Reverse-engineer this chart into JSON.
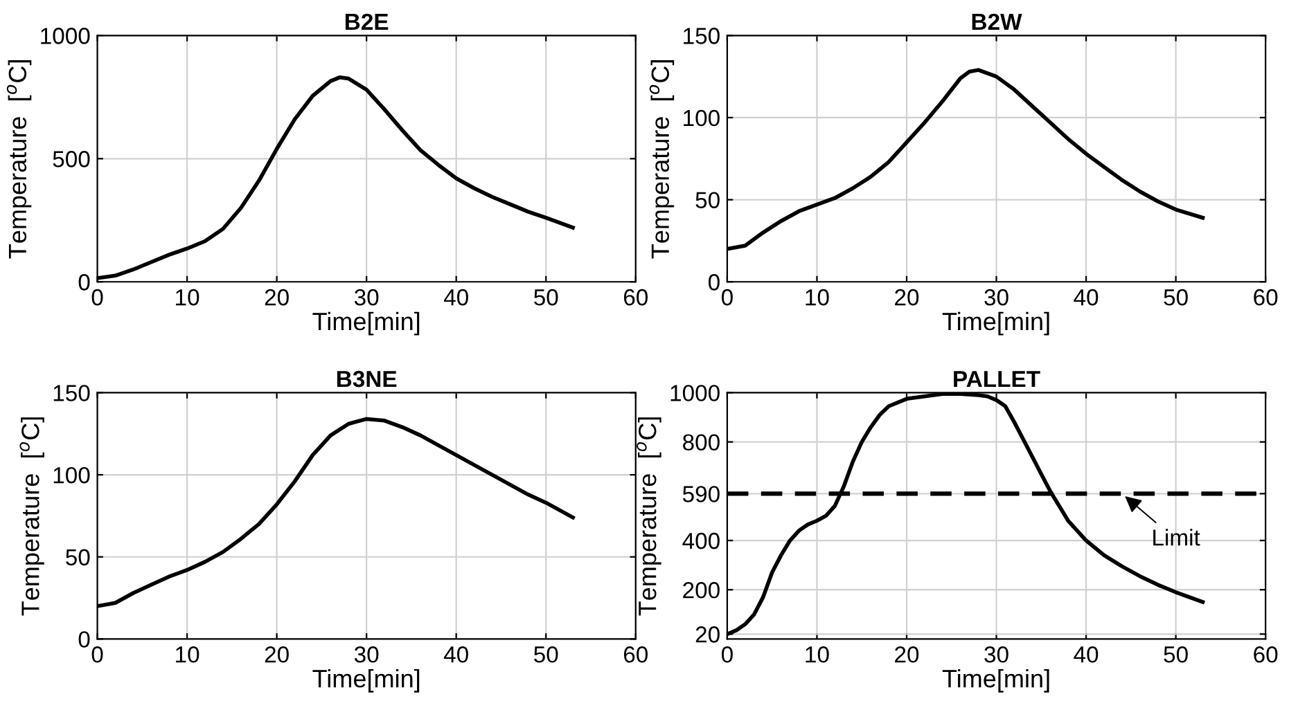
{
  "chart_data": [
    {
      "type": "line",
      "title": "B2E",
      "xlabel": "Time[min]",
      "ylabel": "Temperature  [$^{o}$C]",
      "xlim": [
        0,
        60
      ],
      "xticks": [
        0,
        10,
        20,
        30,
        40,
        50,
        60
      ],
      "ylim": [
        0,
        1000
      ],
      "yticks": [
        0,
        500,
        1000
      ],
      "grid": true,
      "x": [
        0,
        2,
        4,
        6,
        8,
        10,
        12,
        14,
        16,
        18,
        20,
        22,
        24,
        26,
        27,
        28,
        30,
        32,
        34,
        36,
        38,
        40,
        42,
        44,
        46,
        48,
        50,
        53
      ],
      "series": [
        {
          "color": "#000000",
          "values": [
            15,
            25,
            50,
            80,
            110,
            135,
            165,
            215,
            300,
            410,
            540,
            660,
            755,
            815,
            830,
            825,
            780,
            700,
            615,
            535,
            475,
            420,
            380,
            345,
            315,
            285,
            260,
            220
          ]
        }
      ]
    },
    {
      "type": "line",
      "title": "B2W",
      "xlabel": "Time[min]",
      "ylabel": "Temperature  [$^{o}$C]",
      "xlim": [
        0,
        60
      ],
      "xticks": [
        0,
        10,
        20,
        30,
        40,
        50,
        60
      ],
      "ylim": [
        0,
        150
      ],
      "yticks": [
        0,
        50,
        100,
        150
      ],
      "grid": true,
      "x": [
        0,
        2,
        4,
        6,
        8,
        10,
        12,
        14,
        16,
        18,
        20,
        22,
        24,
        26,
        27,
        28,
        30,
        32,
        34,
        36,
        38,
        40,
        42,
        44,
        46,
        48,
        50,
        53
      ],
      "series": [
        {
          "color": "#000000",
          "values": [
            20,
            22,
            30,
            37,
            43,
            47,
            51,
            57,
            64,
            73,
            85,
            97,
            110,
            124,
            128,
            129,
            125,
            117,
            107,
            97,
            87,
            78,
            70,
            62,
            55,
            49,
            44,
            39
          ]
        }
      ]
    },
    {
      "type": "line",
      "title": "B3NE",
      "xlabel": "Time[min]",
      "ylabel": "Temperature  [$^{o}$C]",
      "xlim": [
        0,
        60
      ],
      "xticks": [
        0,
        10,
        20,
        30,
        40,
        50,
        60
      ],
      "ylim": [
        0,
        150
      ],
      "yticks": [
        0,
        50,
        100,
        150
      ],
      "grid": true,
      "x": [
        0,
        2,
        4,
        6,
        8,
        10,
        12,
        14,
        16,
        18,
        20,
        22,
        24,
        26,
        28,
        30,
        32,
        34,
        36,
        38,
        40,
        42,
        44,
        46,
        48,
        50,
        53
      ],
      "series": [
        {
          "color": "#000000",
          "values": [
            20,
            22,
            28,
            33,
            38,
            42,
            47,
            53,
            61,
            70,
            82,
            96,
            112,
            124,
            131,
            134,
            133,
            129,
            124,
            118,
            112,
            106,
            100,
            94,
            88,
            83,
            74
          ]
        }
      ]
    },
    {
      "type": "line",
      "title": "PALLET",
      "xlabel": "Time[min]",
      "ylabel": "Temperature  [$^{o}$C]",
      "xlim": [
        0,
        60
      ],
      "xticks": [
        0,
        10,
        20,
        30,
        40,
        50,
        60
      ],
      "ylim": [
        0,
        1000
      ],
      "yticks": [
        20,
        200,
        400,
        590,
        800,
        1000
      ],
      "grid": true,
      "x": [
        0,
        1,
        2,
        3,
        4,
        5,
        6,
        7,
        8,
        9,
        10,
        11,
        12,
        13,
        14,
        15,
        16,
        17,
        18,
        20,
        22,
        24,
        26,
        28,
        29,
        30,
        31,
        32,
        33,
        34,
        35,
        36,
        37,
        38,
        40,
        42,
        44,
        46,
        48,
        50,
        53
      ],
      "series": [
        {
          "color": "#000000",
          "values": [
            20,
            35,
            60,
            100,
            170,
            270,
            340,
            400,
            440,
            465,
            480,
            500,
            540,
            620,
            720,
            800,
            860,
            910,
            945,
            975,
            985,
            995,
            995,
            990,
            985,
            970,
            945,
            880,
            810,
            740,
            670,
            600,
            540,
            480,
            400,
            340,
            295,
            255,
            220,
            190,
            150
          ]
        }
      ],
      "ref_lines": [
        {
          "axis": "y",
          "value": 590,
          "color": "#000000",
          "line_style": "dashed"
        }
      ],
      "annotations": [
        {
          "text": "Limit",
          "x": 44,
          "y": 590
        }
      ]
    }
  ]
}
